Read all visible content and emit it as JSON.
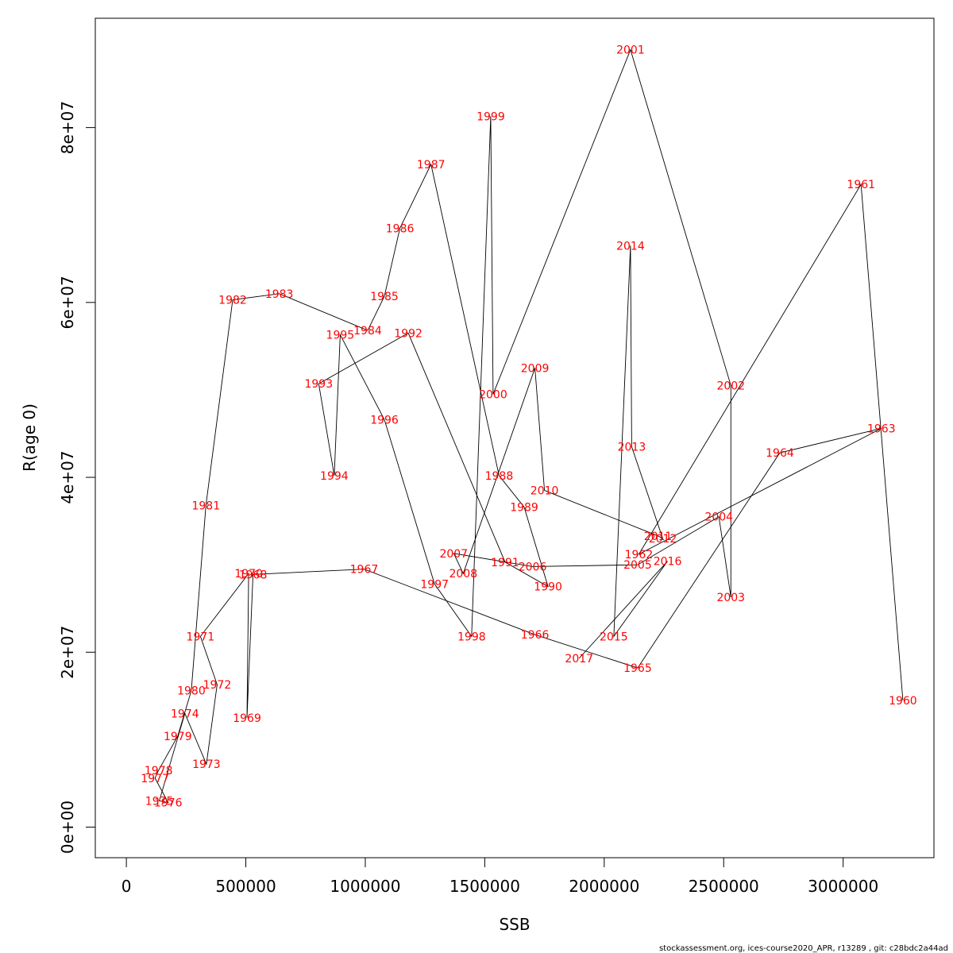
{
  "footer": "stockassessment.org, ices-course2020_APR, r13289 , git: c28bdc2a44ad",
  "chart_data": {
    "type": "line",
    "xlabel": "SSB",
    "ylabel": "R(age 0)",
    "xlim": [
      -130000,
      3380000
    ],
    "ylim": [
      -3500000,
      92500000
    ],
    "xticks": [
      0,
      500000,
      1000000,
      1500000,
      2000000,
      2500000,
      3000000
    ],
    "xtick_labels": [
      "0",
      "500000",
      "1000000",
      "1500000",
      "2000000",
      "2500000",
      "3000000"
    ],
    "yticks": [
      0,
      20000000,
      40000000,
      60000000,
      80000000
    ],
    "ytick_labels": [
      "0e+00",
      "2e+07",
      "4e+07",
      "6e+07",
      "8e+07"
    ],
    "grid": false,
    "legend": "none",
    "label_color": "#ff0000",
    "line_color": "#000000",
    "points": [
      {
        "year": "1960",
        "ssb": 3250000,
        "r": 14500000
      },
      {
        "year": "1961",
        "ssb": 3075000,
        "r": 73500000
      },
      {
        "year": "1962",
        "ssb": 2145000,
        "r": 31200000
      },
      {
        "year": "1963",
        "ssb": 3160000,
        "r": 45600000
      },
      {
        "year": "1964",
        "ssb": 2735000,
        "r": 42800000
      },
      {
        "year": "1965",
        "ssb": 2140000,
        "r": 18200000
      },
      {
        "year": "1966",
        "ssb": 1710000,
        "r": 22000000
      },
      {
        "year": "1967",
        "ssb": 995000,
        "r": 29500000
      },
      {
        "year": "1968",
        "ssb": 530000,
        "r": 28900000
      },
      {
        "year": "1969",
        "ssb": 505000,
        "r": 12500000
      },
      {
        "year": "1970",
        "ssb": 512000,
        "r": 29000000
      },
      {
        "year": "1971",
        "ssb": 310000,
        "r": 21800000
      },
      {
        "year": "1972",
        "ssb": 380000,
        "r": 16300000
      },
      {
        "year": "1973",
        "ssb": 335000,
        "r": 7200000
      },
      {
        "year": "1974",
        "ssb": 245000,
        "r": 13000000
      },
      {
        "year": "1975",
        "ssb": 138000,
        "r": 3000000
      },
      {
        "year": "1976",
        "ssb": 175000,
        "r": 2800000
      },
      {
        "year": "1977",
        "ssb": 120000,
        "r": 5600000
      },
      {
        "year": "1978",
        "ssb": 135000,
        "r": 6500000
      },
      {
        "year": "1979",
        "ssb": 215000,
        "r": 10400000
      },
      {
        "year": "1980",
        "ssb": 272000,
        "r": 15600000
      },
      {
        "year": "1981",
        "ssb": 333000,
        "r": 36800000
      },
      {
        "year": "1982",
        "ssb": 445000,
        "r": 60300000
      },
      {
        "year": "1983",
        "ssb": 640000,
        "r": 61000000
      },
      {
        "year": "1984",
        "ssb": 1010000,
        "r": 56800000
      },
      {
        "year": "1985",
        "ssb": 1080000,
        "r": 60700000
      },
      {
        "year": "1986",
        "ssb": 1145000,
        "r": 68500000
      },
      {
        "year": "1987",
        "ssb": 1275000,
        "r": 75800000
      },
      {
        "year": "1988",
        "ssb": 1560000,
        "r": 40200000
      },
      {
        "year": "1989",
        "ssb": 1665000,
        "r": 36600000
      },
      {
        "year": "1990",
        "ssb": 1765000,
        "r": 27500000
      },
      {
        "year": "1991",
        "ssb": 1585000,
        "r": 30300000
      },
      {
        "year": "1992",
        "ssb": 1180000,
        "r": 56500000
      },
      {
        "year": "1993",
        "ssb": 805000,
        "r": 50700000
      },
      {
        "year": "1994",
        "ssb": 870000,
        "r": 40200000
      },
      {
        "year": "1995",
        "ssb": 895000,
        "r": 56300000
      },
      {
        "year": "1996",
        "ssb": 1080000,
        "r": 46600000
      },
      {
        "year": "1997",
        "ssb": 1290000,
        "r": 27800000
      },
      {
        "year": "1998",
        "ssb": 1445000,
        "r": 21800000
      },
      {
        "year": "1999",
        "ssb": 1525000,
        "r": 81300000
      },
      {
        "year": "2000",
        "ssb": 1535000,
        "r": 49500000
      },
      {
        "year": "2001",
        "ssb": 2110000,
        "r": 88900000
      },
      {
        "year": "2002",
        "ssb": 2530000,
        "r": 50500000
      },
      {
        "year": "2003",
        "ssb": 2530000,
        "r": 26300000
      },
      {
        "year": "2004",
        "ssb": 2480000,
        "r": 35500000
      },
      {
        "year": "2005",
        "ssb": 2140000,
        "r": 30000000
      },
      {
        "year": "2006",
        "ssb": 1700000,
        "r": 29800000
      },
      {
        "year": "2007",
        "ssb": 1370000,
        "r": 31300000
      },
      {
        "year": "2008",
        "ssb": 1410000,
        "r": 29000000
      },
      {
        "year": "2009",
        "ssb": 1710000,
        "r": 52500000
      },
      {
        "year": "2010",
        "ssb": 1750000,
        "r": 38500000
      },
      {
        "year": "2011",
        "ssb": 2225000,
        "r": 33300000
      },
      {
        "year": "2012",
        "ssb": 2245000,
        "r": 33000000
      },
      {
        "year": "2013",
        "ssb": 2115000,
        "r": 43500000
      },
      {
        "year": "2014",
        "ssb": 2110000,
        "r": 66500000
      },
      {
        "year": "2015",
        "ssb": 2040000,
        "r": 21800000
      },
      {
        "year": "2016",
        "ssb": 2265000,
        "r": 30400000
      },
      {
        "year": "2017",
        "ssb": 1895000,
        "r": 19300000
      }
    ]
  }
}
